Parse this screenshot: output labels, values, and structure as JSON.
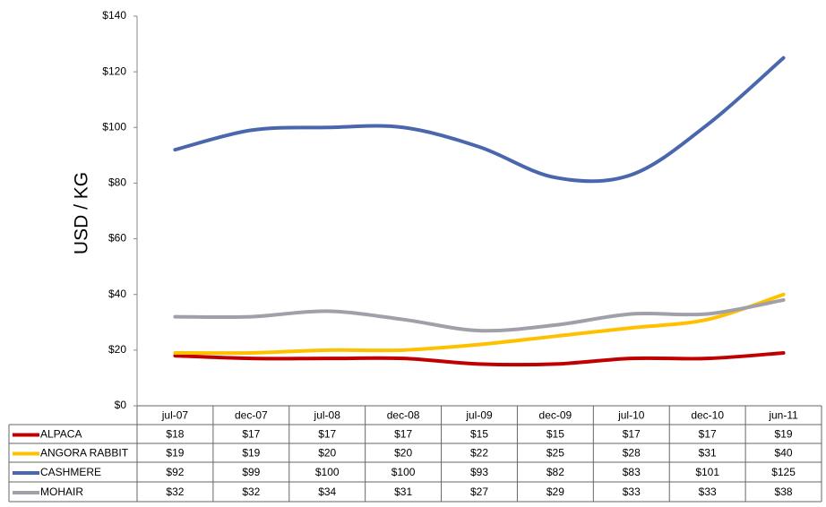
{
  "chart_data": {
    "type": "line",
    "y_label": "USD / KG",
    "categories": [
      "jul-07",
      "dec-07",
      "jul-08",
      "dec-08",
      "jul-09",
      "dec-09",
      "jul-10",
      "dec-10",
      "jun-11"
    ],
    "series": [
      {
        "name": "ALPACA",
        "color": "#c00000",
        "values": [
          18,
          17,
          17,
          17,
          15,
          15,
          17,
          17,
          19
        ],
        "value_labels": [
          "$18",
          "$17",
          "$17",
          "$17",
          "$15",
          "$15",
          "$17",
          "$17",
          "$19"
        ]
      },
      {
        "name": "ANGORA RABBIT",
        "color": "#ffc000",
        "values": [
          19,
          19,
          20,
          20,
          22,
          25,
          28,
          31,
          40
        ],
        "value_labels": [
          "$19",
          "$19",
          "$20",
          "$20",
          "$22",
          "$25",
          "$28",
          "$31",
          "$40"
        ]
      },
      {
        "name": "CASHMERE",
        "color": "#4a67ae",
        "values": [
          92,
          99,
          100,
          100,
          93,
          82,
          83,
          101,
          125
        ],
        "value_labels": [
          "$92",
          "$99",
          "$100",
          "$100",
          "$93",
          "$82",
          "$83",
          "$101",
          "$125"
        ]
      },
      {
        "name": "MOHAIR",
        "color": "#a0a0a8",
        "values": [
          32,
          32,
          34,
          31,
          27,
          29,
          33,
          33,
          38
        ],
        "value_labels": [
          "$32",
          "$32",
          "$34",
          "$31",
          "$27",
          "$29",
          "$33",
          "$33",
          "$38"
        ]
      }
    ],
    "ylim": [
      0,
      140
    ],
    "yticks": [
      {
        "value": 0,
        "label": "$0"
      },
      {
        "value": 20,
        "label": "$20"
      },
      {
        "value": 40,
        "label": "$40"
      },
      {
        "value": 60,
        "label": "$60"
      },
      {
        "value": 80,
        "label": "$80"
      },
      {
        "value": 100,
        "label": "$100"
      },
      {
        "value": 120,
        "label": "$120"
      },
      {
        "value": 140,
        "label": "$140"
      }
    ],
    "smooth": true
  }
}
